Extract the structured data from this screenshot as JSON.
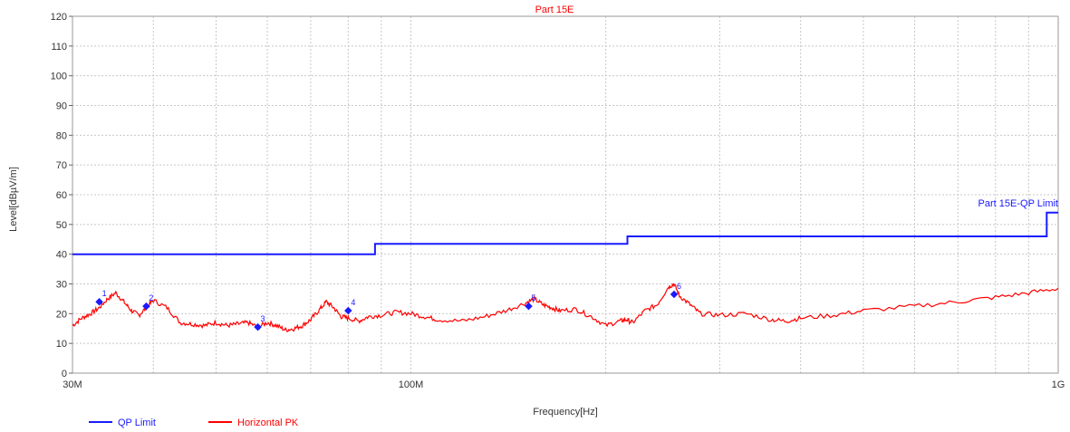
{
  "chart_data": {
    "type": "line",
    "title": "Part 15E",
    "xlabel": "Frequency[Hz]",
    "ylabel": "Level[dBµV/m]",
    "x_scale": "log",
    "xlim": [
      30000000,
      1000000000
    ],
    "ylim": [
      0,
      120
    ],
    "y_ticks": [
      0,
      10,
      20,
      30,
      40,
      50,
      60,
      70,
      80,
      90,
      100,
      110,
      120
    ],
    "x_tick_labels": [
      {
        "value": 30000000,
        "label": "30M"
      },
      {
        "value": 100000000,
        "label": "100M"
      },
      {
        "value": 1000000000,
        "label": "1G"
      }
    ],
    "grid": true,
    "legend_position": "bottom-left",
    "series": [
      {
        "name": "QP Limit",
        "color": "#1a1aff",
        "step": true,
        "x": [
          30000000,
          88000000,
          88000000,
          216000000,
          216000000,
          960000000,
          960000000,
          1000000000
        ],
        "y": [
          40,
          40,
          43.5,
          43.5,
          46,
          46,
          54,
          54
        ]
      },
      {
        "name": "Horizontal PK",
        "color": "#ff0000",
        "x": [
          30000000,
          31000000,
          32000000,
          33000000,
          34000000,
          35000000,
          36000000,
          37000000,
          38000000,
          39000000,
          40000000,
          42000000,
          44000000,
          46000000,
          48000000,
          50000000,
          52000000,
          54000000,
          56000000,
          58000000,
          60000000,
          62000000,
          64000000,
          66000000,
          68000000,
          70000000,
          72000000,
          74000000,
          76000000,
          78000000,
          80000000,
          83000000,
          86000000,
          90000000,
          95000000,
          100000000,
          105000000,
          110000000,
          120000000,
          130000000,
          140000000,
          150000000,
          155000000,
          160000000,
          165000000,
          170000000,
          180000000,
          190000000,
          200000000,
          210000000,
          215000000,
          220000000,
          230000000,
          240000000,
          250000000,
          255000000,
          260000000,
          270000000,
          280000000,
          300000000,
          330000000,
          360000000,
          380000000,
          400000000,
          450000000,
          500000000,
          600000000,
          700000000,
          800000000,
          900000000,
          1000000000
        ],
        "y": [
          16,
          18.5,
          20,
          22,
          25,
          27,
          24,
          21,
          19.5,
          22,
          24.5,
          22,
          17,
          16.5,
          16,
          17,
          16,
          16.5,
          17,
          15.5,
          17,
          16,
          14.5,
          15,
          16,
          18,
          21,
          24,
          22,
          19,
          18.5,
          17.5,
          19,
          19.5,
          20.5,
          20,
          19,
          18,
          17.5,
          19,
          21,
          23.5,
          25,
          23,
          22,
          21,
          21.5,
          19,
          16,
          17.5,
          18,
          17,
          21,
          23,
          29,
          30,
          26,
          23,
          20,
          19.5,
          20,
          18,
          17.5,
          18.5,
          19.5,
          21,
          22.5,
          24,
          25.5,
          27,
          28.5
        ]
      }
    ],
    "markers": [
      {
        "label": "1",
        "x": 33000000,
        "y": 24
      },
      {
        "label": "2",
        "x": 39000000,
        "y": 22.5
      },
      {
        "label": "3",
        "x": 58000000,
        "y": 15.5
      },
      {
        "label": "4",
        "x": 80000000,
        "y": 21
      },
      {
        "label": "5",
        "x": 152000000,
        "y": 22.5
      },
      {
        "label": "6",
        "x": 255000000,
        "y": 26.5
      }
    ],
    "annotation": "Part 15E-QP Limit"
  }
}
